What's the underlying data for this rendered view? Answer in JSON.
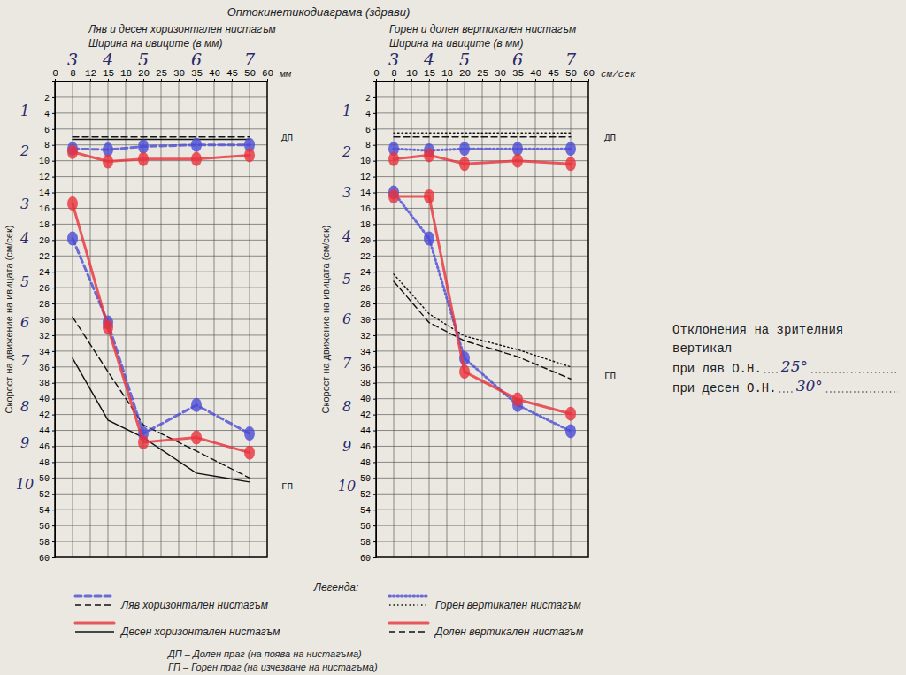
{
  "title": "Оптокинетикодиаграма (здрави)",
  "chart_data": [
    {
      "type": "line",
      "title": "Ляв и десен хоризонтален нистагъм",
      "subtitle": "Ширина на ивиците (в мм)",
      "x_unit": "мм",
      "y_label": "Скорост на движение на ивицата (см/сек)",
      "categories": [
        "0",
        "8",
        "12",
        "15",
        "18",
        "20",
        "25",
        "30",
        "35",
        "40",
        "45",
        "50",
        "60"
      ],
      "ylim": [
        0,
        60
      ],
      "yticks": [
        2,
        4,
        6,
        8,
        10,
        12,
        14,
        16,
        18,
        20,
        22,
        24,
        26,
        28,
        30,
        32,
        34,
        36,
        38,
        40,
        42,
        44,
        46,
        48,
        50,
        52,
        54,
        56,
        58,
        60
      ],
      "grid": true,
      "series": [
        {
          "name": "Ляв хоризонтален нистагъм",
          "color": "#111111",
          "line_style": "dashed",
          "marker": "none",
          "x": [
            "8",
            "15",
            "20",
            "35",
            "50"
          ],
          "values": [
            7.0,
            7.0,
            7.0,
            7.0,
            7.0
          ]
        },
        {
          "name": "Ляв хоризонтален нистагъм",
          "color": "#111111",
          "line_style": "dashed",
          "marker": "none",
          "x": [
            "8",
            "15",
            "20",
            "35",
            "50"
          ],
          "values": [
            29.7,
            36.6,
            43.3,
            46.6,
            50.0
          ]
        },
        {
          "name": "Десен хоризонтален нистагъм",
          "color": "#111111",
          "line_style": "solid",
          "marker": "none",
          "x": [
            "8",
            "15",
            "20",
            "35",
            "50"
          ],
          "values": [
            7.3,
            7.3,
            7.3,
            7.3,
            7.3
          ]
        },
        {
          "name": "Десен хоризонтален нистагъм",
          "color": "#111111",
          "line_style": "solid",
          "marker": "none",
          "x": [
            "8",
            "15",
            "20",
            "35",
            "50"
          ],
          "values": [
            34.9,
            42.7,
            44.9,
            49.4,
            50.5
          ]
        },
        {
          "name": "Ляв хоризонтален нистагъм",
          "color": "#4b4bd6",
          "line_style": "dashed",
          "marker": "blob",
          "x": [
            "8",
            "15",
            "20",
            "35",
            "50"
          ],
          "values": [
            8.5,
            8.6,
            8.2,
            8.0,
            8.0
          ]
        },
        {
          "name": "Ляв хоризонтален нистагъм",
          "color": "#4b4bd6",
          "line_style": "dashed",
          "marker": "blob",
          "x": [
            "8",
            "15",
            "20",
            "35",
            "50"
          ],
          "values": [
            19.8,
            30.4,
            44.4,
            40.8,
            44.4
          ]
        },
        {
          "name": "Десен хоризонтален нистагъм",
          "color": "#e8323c",
          "line_style": "solid",
          "marker": "blob",
          "x": [
            "8",
            "15",
            "20",
            "35",
            "50"
          ],
          "values": [
            8.9,
            10.1,
            9.8,
            9.8,
            9.3
          ]
        },
        {
          "name": "Десен хоризонтален нистагъм",
          "color": "#e8323c",
          "line_style": "solid",
          "marker": "blob",
          "x": [
            "8",
            "15",
            "20",
            "35",
            "50"
          ],
          "values": [
            15.4,
            31.0,
            45.5,
            44.9,
            46.8
          ]
        }
      ],
      "threshold_labels": [
        {
          "label": "ДП",
          "y": 7
        },
        {
          "label": "ГП",
          "y": 51
        }
      ],
      "handwritten_columns": {
        "x": [
          "8",
          "15",
          "20",
          "35",
          "50"
        ],
        "labels": [
          "3",
          "4",
          "5",
          "6",
          "7"
        ]
      },
      "handwritten_rows": {
        "y": [
          3.7,
          8.7,
          15.4,
          19.8,
          25.2,
          30.4,
          35.2,
          41.0,
          45.5,
          50.8
        ],
        "labels": [
          "1",
          "2",
          "3",
          "4",
          "5",
          "6",
          "7",
          "8",
          "9",
          "10"
        ]
      }
    },
    {
      "type": "line",
      "title": "Горен и долен вертикален нистагъм",
      "subtitle": "Ширина на ивиците (в мм)",
      "x_unit": "см/сек",
      "y_label": "Скорост на движение на ивицата (см/сек)",
      "categories": [
        "0",
        "8",
        "10",
        "15",
        "18",
        "20",
        "25",
        "30",
        "35",
        "40",
        "45",
        "50",
        "60"
      ],
      "ylim": [
        0,
        60
      ],
      "yticks": [
        2,
        4,
        6,
        8,
        10,
        12,
        14,
        16,
        18,
        20,
        22,
        24,
        26,
        28,
        30,
        32,
        34,
        36,
        38,
        40,
        42,
        44,
        46,
        48,
        50,
        52,
        54,
        56,
        58,
        60
      ],
      "grid": true,
      "series": [
        {
          "name": "Горен вертикален нистагъм",
          "color": "#111111",
          "line_style": "dotted",
          "marker": "none",
          "x": [
            "8",
            "15",
            "20",
            "35",
            "50"
          ],
          "values": [
            6.5,
            6.5,
            6.5,
            6.5,
            6.5
          ]
        },
        {
          "name": "Горен вертикален нистагъм",
          "color": "#111111",
          "line_style": "dotted",
          "marker": "none",
          "x": [
            "8",
            "15",
            "20",
            "35",
            "50"
          ],
          "values": [
            24.3,
            29.3,
            32.1,
            33.8,
            36.0
          ]
        },
        {
          "name": "Долен вертикален нистагъм",
          "color": "#111111",
          "line_style": "dashed",
          "marker": "none",
          "x": [
            "8",
            "15",
            "20",
            "35",
            "50"
          ],
          "values": [
            7.0,
            7.0,
            7.0,
            7.0,
            7.0
          ]
        },
        {
          "name": "Долен вертикален нистагъм",
          "color": "#111111",
          "line_style": "dashed",
          "marker": "none",
          "x": [
            "8",
            "15",
            "20",
            "35",
            "50"
          ],
          "values": [
            25.2,
            30.4,
            32.7,
            34.7,
            37.5
          ]
        },
        {
          "name": "Горен вертикален нистагъм",
          "color": "#4b4bd6",
          "line_style": "dotted",
          "marker": "blob",
          "x": [
            "8",
            "15",
            "20",
            "35",
            "50"
          ],
          "values": [
            8.5,
            8.7,
            8.5,
            8.5,
            8.5
          ]
        },
        {
          "name": "Горен вертикален нистагъм",
          "color": "#4b4bd6",
          "line_style": "dotted",
          "marker": "blob",
          "x": [
            "8",
            "15",
            "20",
            "35",
            "50"
          ],
          "values": [
            14.0,
            19.8,
            34.9,
            40.8,
            44.1
          ]
        },
        {
          "name": "Долен вертикален нистагъм",
          "color": "#e8323c",
          "line_style": "solid",
          "marker": "blob",
          "x": [
            "8",
            "15",
            "20",
            "35",
            "50"
          ],
          "values": [
            9.8,
            9.3,
            10.4,
            10.0,
            10.4
          ]
        },
        {
          "name": "Долен вертикален нистагъм",
          "color": "#e8323c",
          "line_style": "solid",
          "marker": "blob",
          "x": [
            "8",
            "15",
            "20",
            "35",
            "50"
          ],
          "values": [
            14.5,
            14.5,
            36.6,
            40.1,
            41.9
          ]
        }
      ],
      "threshold_labels": [
        {
          "label": "ДП",
          "y": 7
        },
        {
          "label": "ГП",
          "y": 37
        }
      ],
      "handwritten_columns": {
        "x": [
          "8",
          "15",
          "20",
          "35",
          "50"
        ],
        "labels": [
          "3",
          "4",
          "5",
          "6",
          "7"
        ]
      },
      "handwritten_rows": {
        "y": [
          3.7,
          8.9,
          14.0,
          19.6,
          24.9,
          29.9,
          35.5,
          41.0,
          46.0,
          51.0
        ],
        "labels": [
          "1",
          "2",
          "3",
          "4",
          "5",
          "6",
          "7",
          "8",
          "9",
          "10"
        ]
      }
    }
  ],
  "legend_title": "Легенда:",
  "notes": [
    "ДП – Долен праг (на поява на нистагъма)",
    "ГП – Горен праг (на изчезване на нистагъма)"
  ],
  "side_note": {
    "title_lines": [
      "Отклонения на зрителния",
      "вертикал"
    ],
    "rows": [
      {
        "label": "при ляв О.Н.",
        "value": "25°"
      },
      {
        "label": "при десен О.Н.",
        "value": "30°"
      }
    ]
  }
}
